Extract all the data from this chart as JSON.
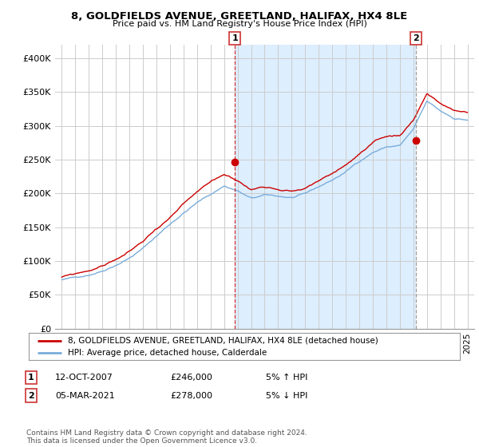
{
  "title": "8, GOLDFIELDS AVENUE, GREETLAND, HALIFAX, HX4 8LE",
  "subtitle": "Price paid vs. HM Land Registry's House Price Index (HPI)",
  "legend_line1": "8, GOLDFIELDS AVENUE, GREETLAND, HALIFAX, HX4 8LE (detached house)",
  "legend_line2": "HPI: Average price, detached house, Calderdale",
  "footnote": "Contains HM Land Registry data © Crown copyright and database right 2024.\nThis data is licensed under the Open Government Licence v3.0.",
  "annotation1_label": "1",
  "annotation1_date": "12-OCT-2007",
  "annotation1_price": "£246,000",
  "annotation1_hpi": "5% ↑ HPI",
  "annotation2_label": "2",
  "annotation2_date": "05-MAR-2021",
  "annotation2_price": "£278,000",
  "annotation2_hpi": "5% ↓ HPI",
  "red_color": "#cc0000",
  "blue_color": "#7aaddb",
  "shade_color": "#ddeeff",
  "background_color": "#ffffff",
  "grid_color": "#cccccc",
  "sale1_x": 2007.79,
  "sale2_x": 2021.17,
  "sale1_y": 246000,
  "sale2_y": 278000,
  "xlim": [
    1994.5,
    2025.5
  ],
  "ylim": [
    0,
    420000
  ],
  "yticks": [
    0,
    50000,
    100000,
    150000,
    200000,
    250000,
    300000,
    350000,
    400000
  ],
  "ytick_labels": [
    "£0",
    "£50K",
    "£100K",
    "£150K",
    "£200K",
    "£250K",
    "£300K",
    "£350K",
    "£400K"
  ]
}
